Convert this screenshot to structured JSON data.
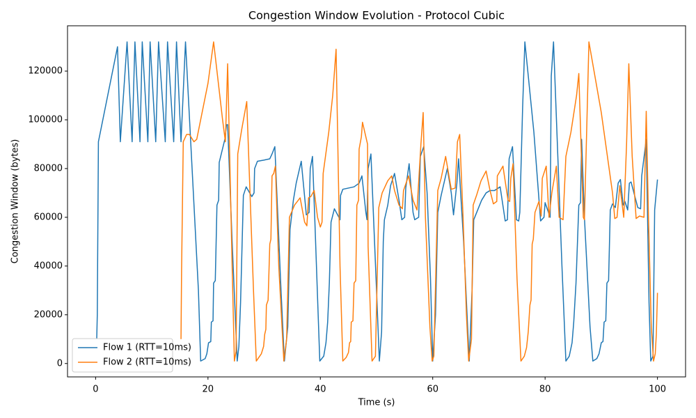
{
  "chart_data": {
    "type": "line",
    "title": "Congestion Window Evolution - Protocol Cubic",
    "x_label": "Time (s)",
    "y_label": "Congestion Window (bytes)",
    "xlim": [
      -5,
      105
    ],
    "xticks": [
      0,
      20,
      40,
      60,
      80,
      100
    ],
    "ylim": [
      -5500,
      138600
    ],
    "yticks": [
      0,
      20000,
      40000,
      60000,
      80000,
      100000,
      120000
    ],
    "legend": "lower left",
    "series": [
      {
        "name": "Flow 1 (RTT=10ms)",
        "color": "#1f77b4",
        "x": [
          0.2,
          0.3,
          0.5,
          3.9,
          4.4,
          5.6,
          6.5,
          7.0,
          7.9,
          8.3,
          9.3,
          9.7,
          10.7,
          11.2,
          12.4,
          12.8,
          13.9,
          14.4,
          15.2,
          16.0,
          18.3,
          18.7,
          19.5,
          19.8,
          20.1,
          20.5,
          20.6,
          20.9,
          21.0,
          21.3,
          21.6,
          21.9,
          22.0,
          23.0,
          23.3,
          23.5,
          24.3,
          25.2,
          25.5,
          25.8,
          26.3,
          26.8,
          27.8,
          28.2,
          28.3,
          28.8,
          30.0,
          31.0,
          31.4,
          31.9,
          33.0,
          33.6,
          34.2,
          34.6,
          35.2,
          35.7,
          36.4,
          36.6,
          37.3,
          37.5,
          38.0,
          38.2,
          38.6,
          39.0,
          39.9,
          40.6,
          41.0,
          41.3,
          41.6,
          41.9,
          42.5,
          43.3,
          43.5,
          43.6,
          44.0,
          45.0,
          46.0,
          46.9,
          47.4,
          48.1,
          48.3,
          48.5,
          49.0,
          50.0,
          50.5,
          50.9,
          51.2,
          51.4,
          52.0,
          52.5,
          53.2,
          54.0,
          54.5,
          55.0,
          55.2,
          55.8,
          56.5,
          56.8,
          57.5,
          57.8,
          58.4,
          59.0,
          59.6,
          60.0,
          60.5,
          60.9,
          61.5,
          62.3,
          62.6,
          63.3,
          63.7,
          64.3,
          64.6,
          65.5,
          66.5,
          67.0,
          67.3,
          68.0,
          68.7,
          69.5,
          70.2,
          71.0,
          72.0,
          72.9,
          73.3,
          73.6,
          74.2,
          74.9,
          75.3,
          75.5,
          76.0,
          76.4,
          78.0,
          79.2,
          79.8,
          80.0,
          80.9,
          81.1,
          81.5,
          83.0,
          83.7,
          84.3,
          84.8,
          85.1,
          85.5,
          86.0,
          86.3,
          86.5,
          87.0,
          88.0,
          88.5,
          89.2,
          89.6,
          90.0,
          90.3,
          90.5,
          90.8,
          91.0,
          91.3,
          91.6,
          92.0,
          92.5,
          93.0,
          93.4,
          93.9,
          94.2,
          94.7,
          95.0,
          95.3,
          96.5,
          97.0,
          97.2,
          98.0,
          98.5,
          98.8,
          99.2,
          99.5,
          100.0
        ],
        "values": [
          10000,
          20000,
          91000,
          130000,
          91000,
          132000,
          91000,
          132000,
          91000,
          132000,
          91000,
          132000,
          91000,
          132000,
          91000,
          132000,
          91000,
          132000,
          91000,
          132000,
          30000,
          1000,
          2000,
          4000,
          8500,
          9000,
          17000,
          17500,
          33000,
          34000,
          65000,
          67000,
          82500,
          92000,
          98000,
          98000,
          50000,
          1000,
          7000,
          25000,
          69000,
          72500,
          68500,
          70000,
          80000,
          83000,
          83500,
          84000,
          86000,
          89000,
          30000,
          1000,
          15000,
          55000,
          67000,
          74000,
          81000,
          83000,
          66000,
          61000,
          62000,
          80000,
          85000,
          60000,
          1000,
          3000,
          8500,
          17000,
          33000,
          58000,
          63500,
          60000,
          59000,
          69000,
          71500,
          72000,
          72500,
          74000,
          77000,
          62000,
          59000,
          80000,
          86000,
          30000,
          1000,
          13000,
          50000,
          59000,
          65000,
          73000,
          78000,
          67000,
          59000,
          60000,
          72000,
          82000,
          62000,
          59000,
          60000,
          85000,
          89000,
          70000,
          35000,
          1000,
          20000,
          62000,
          69000,
          77000,
          80000,
          70000,
          61000,
          74000,
          84000,
          50000,
          1000,
          30000,
          59000,
          63000,
          67000,
          70000,
          71000,
          71000,
          72500,
          58500,
          59000,
          84000,
          89000,
          59000,
          58500,
          62000,
          105000,
          132000,
          95000,
          58500,
          60000,
          66000,
          60000,
          118000,
          132000,
          40000,
          1000,
          3000,
          8500,
          17000,
          33000,
          65000,
          66000,
          92000,
          60000,
          15000,
          1000,
          2000,
          4000,
          8500,
          9000,
          17000,
          17500,
          33000,
          34000,
          63000,
          65500,
          64000,
          74000,
          75500,
          65000,
          66500,
          63000,
          74000,
          74500,
          64000,
          63500,
          77000,
          92000,
          25000,
          1000,
          3000,
          63000,
          75500
        ]
      },
      {
        "name": "Flow 2 (RTT=10ms)",
        "color": "#ff7f0e",
        "x": [
          15.2,
          15.3,
          15.6,
          16.2,
          16.7,
          17.5,
          18.0,
          20.0,
          21.0,
          22.6,
          23.1,
          23.5,
          24.3,
          24.7,
          25.0,
          25.3,
          26.0,
          26.9,
          28.1,
          28.6,
          29.5,
          29.9,
          30.1,
          30.3,
          30.4,
          30.7,
          31.0,
          31.2,
          31.4,
          31.7,
          32.0,
          32.6,
          33.5,
          34.0,
          34.5,
          35.4,
          36.4,
          37.2,
          37.6,
          37.9,
          38.3,
          38.9,
          39.5,
          40.0,
          40.3,
          40.5,
          41.5,
          42.2,
          42.8,
          43.5,
          44.0,
          44.6,
          45.0,
          45.2,
          45.4,
          45.5,
          45.8,
          46.0,
          46.3,
          46.5,
          46.8,
          46.9,
          47.3,
          47.5,
          48.4,
          48.5,
          49.2,
          49.8,
          50.4,
          51.0,
          52.0,
          52.7,
          53.2,
          54.0,
          54.6,
          54.8,
          55.7,
          56.5,
          57.2,
          57.9,
          58.3,
          58.7,
          59.5,
          59.9,
          60.2,
          60.9,
          61.5,
          62.3,
          63.3,
          64.0,
          64.4,
          64.8,
          65.4,
          66.0,
          66.4,
          66.9,
          67.2,
          67.8,
          68.6,
          69.5,
          70.2,
          70.8,
          71.4,
          71.5,
          72.0,
          72.5,
          73.4,
          73.7,
          73.9,
          74.3,
          75.0,
          75.7,
          76.3,
          76.7,
          77.0,
          77.3,
          77.5,
          77.7,
          77.9,
          78.2,
          78.9,
          79.3,
          79.5,
          80.2,
          80.7,
          81.2,
          82.0,
          82.5,
          83.2,
          83.7,
          84.6,
          85.6,
          86.0,
          86.8,
          87.0,
          87.8,
          90.0,
          92.0,
          92.4,
          92.8,
          93.3,
          94.0,
          94.5,
          94.9,
          95.5,
          96.2,
          96.8,
          97.6,
          98.0,
          98.4,
          98.9,
          99.3,
          99.6,
          99.8,
          100.0
        ],
        "values": [
          10000,
          38000,
          91000,
          94000,
          94000,
          91000,
          92000,
          115000,
          132000,
          100000,
          91000,
          123000,
          40000,
          1000,
          5000,
          86000,
          96000,
          107500,
          30000,
          1000,
          4000,
          7000,
          12000,
          14000,
          24000,
          26000,
          49000,
          51000,
          77000,
          78000,
          81000,
          40000,
          1000,
          10000,
          60000,
          65000,
          68000,
          58000,
          56500,
          68000,
          68500,
          71000,
          60000,
          56000,
          58000,
          78000,
          95000,
          110000,
          129000,
          40000,
          1000,
          2500,
          4500,
          8500,
          9000,
          17000,
          17500,
          33000,
          34000,
          65000,
          67000,
          88000,
          93000,
          99000,
          90000,
          48000,
          1000,
          3000,
          64000,
          70000,
          75000,
          77000,
          71000,
          65000,
          63500,
          71000,
          77000,
          67000,
          63000,
          90000,
          103000,
          60000,
          15000,
          1000,
          3000,
          71000,
          76000,
          85000,
          71500,
          72000,
          91000,
          94000,
          60000,
          20000,
          1000,
          10000,
          65000,
          69000,
          75000,
          79000,
          71000,
          65500,
          66500,
          77000,
          79000,
          81000,
          67000,
          66500,
          76000,
          82000,
          35000,
          1000,
          3000,
          6500,
          13000,
          24000,
          26000,
          49000,
          51000,
          62000,
          66500,
          60500,
          76000,
          81000,
          60000,
          70000,
          81000,
          60000,
          59000,
          85000,
          95000,
          110000,
          119000,
          60000,
          59000,
          132000,
          103000,
          70000,
          59500,
          60000,
          73000,
          60000,
          90000,
          123000,
          85000,
          59500,
          60500,
          60000,
          103500,
          60000,
          15000,
          1000,
          4000,
          12000,
          29000
        ]
      }
    ]
  }
}
